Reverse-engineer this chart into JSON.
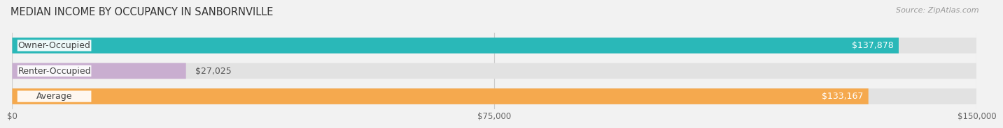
{
  "title": "MEDIAN INCOME BY OCCUPANCY IN SANBORNVILLE",
  "source": "Source: ZipAtlas.com",
  "categories": [
    "Owner-Occupied",
    "Renter-Occupied",
    "Average"
  ],
  "values": [
    137878,
    27025,
    133167
  ],
  "bar_colors": [
    "#2ab8b8",
    "#c9aed0",
    "#f5a94e"
  ],
  "bar_labels": [
    "$137,878",
    "$27,025",
    "$133,167"
  ],
  "xlim": [
    0,
    150000
  ],
  "xticks": [
    0,
    75000,
    150000
  ],
  "xticklabels": [
    "$0",
    "$75,000",
    "$150,000"
  ],
  "background_color": "#f2f2f2",
  "bar_background_color": "#e2e2e2",
  "title_fontsize": 10.5,
  "source_fontsize": 8,
  "label_fontsize": 9,
  "value_fontsize": 9,
  "tick_fontsize": 8.5,
  "bar_height": 0.62,
  "label_bg_color": "#ffffff"
}
